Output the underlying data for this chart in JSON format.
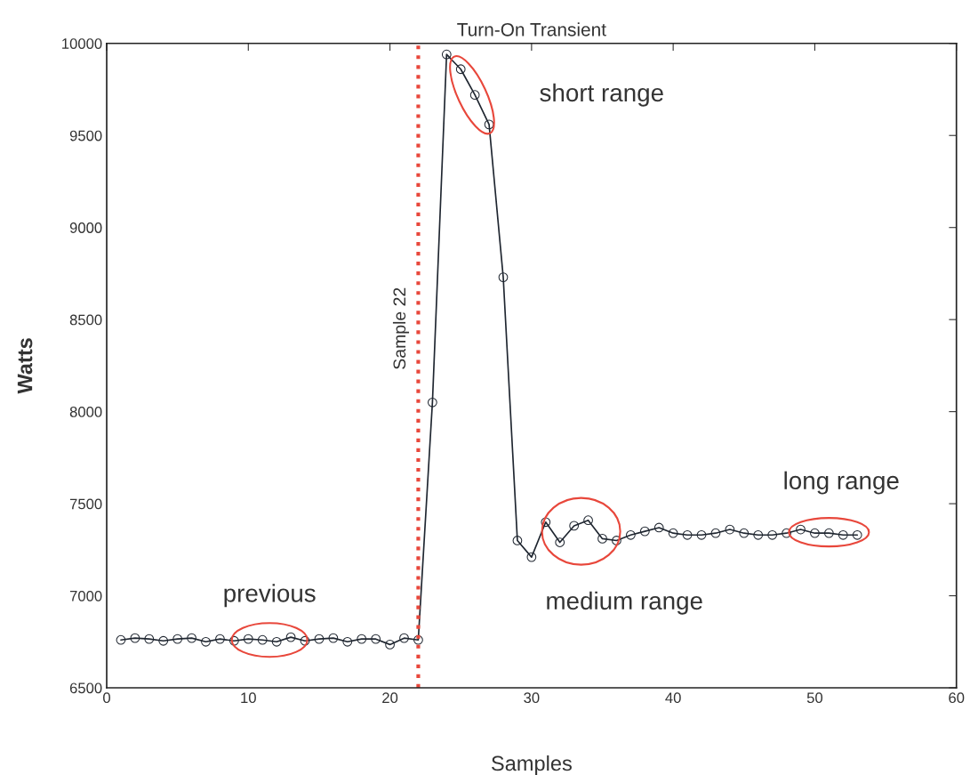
{
  "chart_data": {
    "type": "line",
    "title": "Turn-On Transient",
    "xlabel": "Samples",
    "ylabel": "Watts",
    "x": [
      1,
      2,
      3,
      4,
      5,
      6,
      7,
      8,
      9,
      10,
      11,
      12,
      13,
      14,
      15,
      16,
      17,
      18,
      19,
      20,
      21,
      22,
      23,
      24,
      25,
      26,
      27,
      28,
      29,
      30,
      31,
      32,
      33,
      34,
      35,
      36,
      37,
      38,
      39,
      40,
      41,
      42,
      43,
      44,
      45,
      46,
      47,
      48,
      49,
      50,
      51,
      52,
      53
    ],
    "series": [
      {
        "color": "#1f2630",
        "values": [
          6760,
          6770,
          6765,
          6755,
          6765,
          6770,
          6750,
          6765,
          6755,
          6765,
          6760,
          6750,
          6775,
          6755,
          6765,
          6770,
          6750,
          6765,
          6765,
          6735,
          6770,
          6760,
          8050,
          9940,
          9860,
          9720,
          9560,
          8730,
          7300,
          7210,
          7400,
          7290,
          7380,
          7410,
          7310,
          7300,
          7330,
          7350,
          7370,
          7340,
          7330,
          7330,
          7340,
          7360,
          7340,
          7330,
          7330,
          7340,
          7360,
          7340,
          7340,
          7330,
          7330
        ]
      }
    ],
    "marker": "circle",
    "line_style": "solid",
    "xlim": [
      0,
      60
    ],
    "xticks": [
      0,
      10,
      20,
      30,
      40,
      50,
      60
    ],
    "ylim": [
      6500,
      10000
    ],
    "yticks": [
      6500,
      7000,
      7500,
      8000,
      8500,
      9000,
      9500,
      10000
    ],
    "grid": false,
    "legend": false,
    "ref_lines": [
      {
        "axis": "x",
        "value": 22,
        "label": "Sample 22",
        "color": "#e8473b",
        "line_style": "dotted"
      }
    ],
    "annotations": [
      {
        "text": "previous",
        "x": 11.5,
        "y": 6760
      },
      {
        "text": "short range",
        "x": 25.8,
        "y": 9720
      },
      {
        "text": "medium range",
        "x": 33.5,
        "y": 7350
      },
      {
        "text": "long range",
        "x": 51,
        "y": 7345
      }
    ]
  }
}
